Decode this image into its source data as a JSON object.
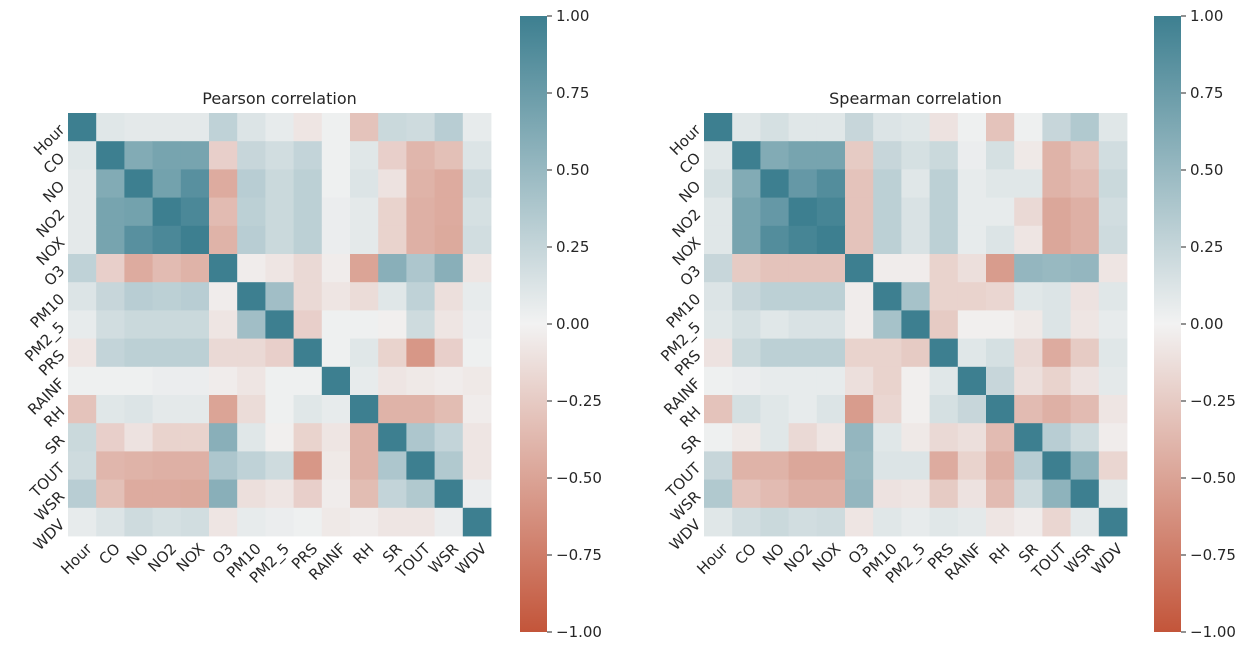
{
  "chart_data": [
    {
      "type": "heatmap",
      "title": "Pearson correlation",
      "variables": [
        "Hour",
        "CO",
        "NO",
        "NO2",
        "NOX",
        "O3",
        "PM10",
        "PM2_5",
        "PRS",
        "RAINF",
        "RH",
        "SR",
        "TOUT",
        "WSR",
        "WDV"
      ],
      "matrix": [
        [
          1.0,
          0.1,
          0.08,
          0.08,
          0.08,
          0.28,
          0.12,
          0.06,
          -0.08,
          0.02,
          -0.3,
          0.22,
          0.2,
          0.32,
          0.06
        ],
        [
          0.1,
          1.0,
          0.62,
          0.68,
          0.68,
          -0.22,
          0.24,
          0.18,
          0.26,
          0.02,
          0.1,
          -0.22,
          -0.38,
          -0.32,
          0.12
        ],
        [
          0.08,
          0.62,
          1.0,
          0.7,
          0.85,
          -0.45,
          0.32,
          0.22,
          0.3,
          0.02,
          0.12,
          -0.1,
          -0.4,
          -0.45,
          0.2
        ],
        [
          0.08,
          0.68,
          0.7,
          1.0,
          0.92,
          -0.35,
          0.3,
          0.22,
          0.3,
          0.04,
          0.08,
          -0.2,
          -0.42,
          -0.45,
          0.16
        ],
        [
          0.08,
          0.68,
          0.85,
          0.92,
          1.0,
          -0.4,
          0.32,
          0.22,
          0.3,
          0.04,
          0.08,
          -0.2,
          -0.42,
          -0.46,
          0.18
        ],
        [
          0.28,
          -0.22,
          -0.45,
          -0.35,
          -0.4,
          1.0,
          -0.04,
          -0.08,
          -0.16,
          -0.04,
          -0.5,
          0.58,
          0.38,
          0.58,
          -0.08
        ],
        [
          0.12,
          0.24,
          0.32,
          0.3,
          0.32,
          -0.04,
          1.0,
          0.45,
          -0.16,
          -0.08,
          -0.14,
          0.1,
          0.28,
          -0.12,
          0.06
        ],
        [
          0.06,
          0.18,
          0.22,
          0.22,
          0.22,
          -0.08,
          0.45,
          1.0,
          -0.22,
          0.02,
          0.02,
          -0.02,
          0.2,
          -0.08,
          0.04
        ],
        [
          -0.08,
          0.26,
          0.3,
          0.3,
          0.3,
          -0.16,
          -0.16,
          -0.22,
          1.0,
          0.02,
          0.1,
          -0.2,
          -0.58,
          -0.22,
          0.02
        ],
        [
          0.02,
          0.02,
          0.02,
          0.04,
          0.04,
          -0.04,
          -0.08,
          0.02,
          0.02,
          1.0,
          0.06,
          -0.08,
          -0.06,
          -0.04,
          -0.06
        ],
        [
          -0.3,
          0.1,
          0.12,
          0.08,
          0.08,
          -0.5,
          -0.14,
          0.02,
          0.1,
          0.06,
          1.0,
          -0.4,
          -0.4,
          -0.34,
          -0.04
        ],
        [
          0.22,
          -0.22,
          -0.1,
          -0.2,
          -0.2,
          0.58,
          0.1,
          -0.02,
          -0.2,
          -0.08,
          -0.4,
          1.0,
          0.38,
          0.26,
          -0.08
        ],
        [
          0.2,
          -0.38,
          -0.4,
          -0.42,
          -0.42,
          0.38,
          0.28,
          0.2,
          -0.58,
          -0.06,
          -0.4,
          0.38,
          1.0,
          0.36,
          -0.08
        ],
        [
          0.32,
          -0.32,
          -0.45,
          -0.45,
          -0.46,
          0.58,
          -0.12,
          -0.08,
          -0.22,
          -0.04,
          -0.34,
          0.26,
          0.36,
          1.0,
          0.04
        ],
        [
          0.06,
          0.12,
          0.2,
          0.16,
          0.18,
          -0.08,
          0.06,
          0.04,
          0.02,
          -0.06,
          -0.04,
          -0.08,
          -0.08,
          0.04,
          1.0
        ]
      ],
      "colorbar": {
        "vmin": -1.0,
        "vmax": 1.0,
        "ticks": [
          "1.00",
          "0.75",
          "0.50",
          "0.25",
          "0.00",
          "−0.25",
          "−0.50",
          "−0.75",
          "−1.00"
        ]
      },
      "colors": {
        "negative": "#c3553a",
        "center": "#f2f2f2",
        "positive": "#3d7f90"
      },
      "grid": false,
      "legend": "colorbar-right"
    },
    {
      "type": "heatmap",
      "title": "Spearman correlation",
      "variables": [
        "Hour",
        "CO",
        "NO",
        "NO2",
        "NOX",
        "O3",
        "PM10",
        "PM2_5",
        "PRS",
        "RAINF",
        "RH",
        "SR",
        "TOUT",
        "WSR",
        "WDV"
      ],
      "matrix": [
        [
          1.0,
          0.1,
          0.16,
          0.1,
          0.1,
          0.24,
          0.12,
          0.1,
          -0.1,
          0.02,
          -0.3,
          0.02,
          0.24,
          0.36,
          0.1
        ],
        [
          0.1,
          1.0,
          0.62,
          0.68,
          0.68,
          -0.25,
          0.24,
          0.16,
          0.22,
          0.04,
          0.16,
          -0.06,
          -0.4,
          -0.3,
          0.18
        ],
        [
          0.16,
          0.62,
          1.0,
          0.78,
          0.88,
          -0.3,
          0.3,
          0.1,
          0.3,
          0.06,
          0.1,
          0.1,
          -0.4,
          -0.35,
          0.22
        ],
        [
          0.1,
          0.68,
          0.78,
          1.0,
          0.95,
          -0.3,
          0.3,
          0.14,
          0.3,
          0.06,
          0.06,
          -0.16,
          -0.48,
          -0.42,
          0.18
        ],
        [
          0.1,
          0.68,
          0.88,
          0.95,
          1.0,
          -0.3,
          0.3,
          0.14,
          0.3,
          0.06,
          0.12,
          -0.08,
          -0.48,
          -0.42,
          0.2
        ],
        [
          0.24,
          -0.25,
          -0.3,
          -0.3,
          -0.3,
          1.0,
          -0.04,
          -0.04,
          -0.2,
          -0.12,
          -0.55,
          0.52,
          0.5,
          0.52,
          -0.08
        ],
        [
          0.12,
          0.24,
          0.3,
          0.3,
          0.3,
          -0.04,
          1.0,
          0.42,
          -0.2,
          -0.2,
          -0.18,
          0.1,
          0.12,
          -0.1,
          0.1
        ],
        [
          0.1,
          0.16,
          0.1,
          0.14,
          0.14,
          -0.04,
          0.42,
          1.0,
          -0.25,
          -0.02,
          -0.02,
          -0.06,
          0.12,
          -0.08,
          0.06
        ],
        [
          -0.1,
          0.22,
          0.3,
          0.3,
          0.3,
          -0.2,
          -0.2,
          -0.25,
          1.0,
          0.1,
          0.16,
          -0.16,
          -0.45,
          -0.25,
          0.1
        ],
        [
          0.02,
          0.04,
          0.06,
          0.06,
          0.06,
          -0.12,
          -0.2,
          -0.02,
          0.1,
          1.0,
          0.24,
          -0.12,
          -0.2,
          -0.1,
          0.08
        ],
        [
          -0.3,
          0.16,
          0.1,
          0.06,
          0.12,
          -0.55,
          -0.18,
          -0.02,
          0.16,
          0.24,
          1.0,
          -0.35,
          -0.42,
          -0.35,
          -0.08
        ],
        [
          0.02,
          -0.06,
          0.1,
          -0.16,
          -0.08,
          0.52,
          0.1,
          -0.06,
          -0.16,
          -0.12,
          -0.35,
          1.0,
          0.32,
          0.2,
          -0.04
        ],
        [
          0.24,
          -0.4,
          -0.4,
          -0.48,
          -0.48,
          0.5,
          0.12,
          0.12,
          -0.45,
          -0.2,
          -0.42,
          0.32,
          1.0,
          0.55,
          -0.18
        ],
        [
          0.36,
          -0.3,
          -0.35,
          -0.42,
          -0.42,
          0.52,
          -0.1,
          -0.08,
          -0.25,
          -0.1,
          -0.35,
          0.2,
          0.55,
          1.0,
          0.08
        ],
        [
          0.1,
          0.18,
          0.22,
          0.18,
          0.2,
          -0.08,
          0.1,
          0.06,
          0.1,
          0.08,
          -0.08,
          -0.04,
          -0.18,
          0.08,
          1.0
        ]
      ],
      "colorbar": {
        "vmin": -1.0,
        "vmax": 1.0,
        "ticks": [
          "1.00",
          "0.75",
          "0.50",
          "0.25",
          "0.00",
          "−0.25",
          "−0.50",
          "−0.75",
          "−1.00"
        ]
      },
      "colors": {
        "negative": "#c3553a",
        "center": "#f2f2f2",
        "positive": "#3d7f90"
      },
      "grid": false,
      "legend": "colorbar-right"
    }
  ]
}
